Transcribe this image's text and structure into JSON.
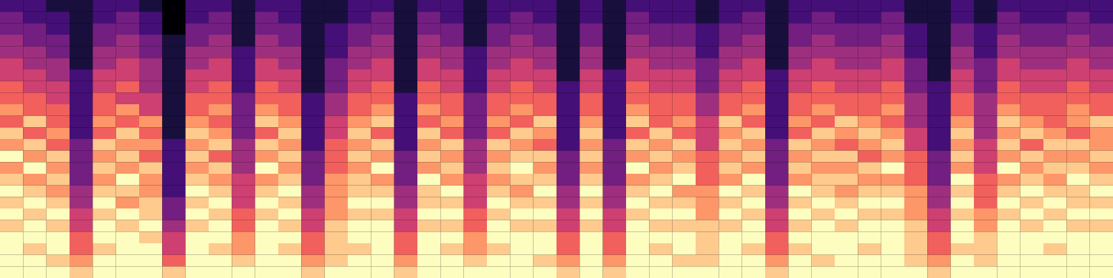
{
  "chart_data": {
    "type": "heatmap",
    "tick_labels": false,
    "color": "magma",
    "zlim": [
      0,
      9
    ],
    "cells": [
      [
        2,
        2,
        1,
        1,
        2,
        2,
        1,
        0,
        2,
        2,
        1,
        2,
        2,
        1,
        1,
        2,
        2,
        1,
        2,
        2,
        1,
        2,
        2,
        2,
        1,
        2,
        1,
        2,
        2,
        2,
        1,
        2,
        2,
        1,
        2,
        2,
        2,
        2,
        2,
        1,
        1,
        2,
        1,
        2,
        2,
        2,
        2,
        2
      ],
      [
        3,
        2,
        2,
        1,
        2,
        3,
        2,
        0,
        2,
        3,
        1,
        3,
        2,
        1,
        1,
        2,
        3,
        1,
        3,
        2,
        1,
        2,
        3,
        2,
        1,
        2,
        1,
        3,
        2,
        2,
        1,
        2,
        3,
        1,
        2,
        3,
        2,
        2,
        3,
        1,
        1,
        2,
        1,
        3,
        2,
        2,
        3,
        2
      ],
      [
        3,
        3,
        2,
        1,
        3,
        3,
        2,
        0,
        3,
        3,
        1,
        3,
        3,
        1,
        2,
        3,
        3,
        1,
        3,
        3,
        1,
        3,
        3,
        3,
        1,
        3,
        1,
        3,
        3,
        3,
        2,
        3,
        3,
        1,
        3,
        3,
        3,
        3,
        3,
        2,
        1,
        3,
        2,
        3,
        3,
        3,
        3,
        3
      ],
      [
        4,
        3,
        3,
        1,
        3,
        4,
        3,
        1,
        3,
        4,
        1,
        4,
        3,
        1,
        2,
        3,
        4,
        1,
        4,
        3,
        1,
        3,
        4,
        3,
        1,
        3,
        1,
        4,
        3,
        3,
        2,
        3,
        4,
        1,
        3,
        4,
        3,
        3,
        4,
        2,
        1,
        3,
        2,
        4,
        3,
        3,
        4,
        3
      ],
      [
        4,
        4,
        3,
        1,
        4,
        4,
        3,
        1,
        4,
        4,
        2,
        4,
        4,
        1,
        2,
        4,
        4,
        1,
        4,
        4,
        2,
        4,
        4,
        4,
        1,
        4,
        1,
        4,
        4,
        4,
        2,
        4,
        4,
        1,
        4,
        4,
        4,
        4,
        4,
        2,
        1,
        4,
        2,
        4,
        4,
        4,
        4,
        4
      ],
      [
        5,
        4,
        4,
        1,
        4,
        5,
        4,
        1,
        4,
        5,
        2,
        5,
        4,
        1,
        3,
        4,
        5,
        1,
        5,
        4,
        2,
        4,
        5,
        4,
        1,
        4,
        1,
        5,
        4,
        4,
        3,
        4,
        5,
        1,
        4,
        5,
        4,
        4,
        5,
        3,
        1,
        4,
        3,
        5,
        4,
        4,
        5,
        4
      ],
      [
        5,
        5,
        4,
        2,
        5,
        5,
        4,
        1,
        5,
        5,
        2,
        5,
        5,
        1,
        3,
        5,
        5,
        1,
        5,
        5,
        2,
        5,
        5,
        5,
        1,
        5,
        2,
        5,
        5,
        5,
        3,
        5,
        5,
        2,
        5,
        5,
        5,
        5,
        5,
        3,
        1,
        5,
        3,
        5,
        5,
        5,
        5,
        5
      ],
      [
        6,
        5,
        5,
        2,
        5,
        6,
        4,
        1,
        5,
        6,
        2,
        6,
        5,
        1,
        3,
        5,
        6,
        1,
        6,
        5,
        2,
        5,
        6,
        5,
        2,
        5,
        2,
        6,
        5,
        5,
        3,
        5,
        6,
        2,
        5,
        6,
        5,
        5,
        6,
        3,
        2,
        5,
        3,
        6,
        5,
        5,
        6,
        5
      ],
      [
        6,
        6,
        5,
        2,
        6,
        5,
        5,
        1,
        6,
        6,
        3,
        6,
        6,
        2,
        4,
        6,
        6,
        2,
        6,
        6,
        3,
        6,
        6,
        6,
        2,
        6,
        2,
        6,
        6,
        6,
        4,
        6,
        6,
        2,
        6,
        6,
        6,
        6,
        6,
        4,
        2,
        6,
        4,
        6,
        6,
        6,
        6,
        6
      ],
      [
        7,
        6,
        6,
        2,
        6,
        7,
        5,
        1,
        6,
        7,
        3,
        7,
        6,
        2,
        4,
        6,
        7,
        2,
        7,
        6,
        3,
        6,
        7,
        6,
        2,
        6,
        2,
        7,
        6,
        6,
        4,
        6,
        7,
        2,
        6,
        7,
        6,
        6,
        7,
        4,
        2,
        6,
        4,
        7,
        6,
        6,
        7,
        6
      ],
      [
        6,
        8,
        6,
        2,
        7,
        6,
        7,
        1,
        7,
        6,
        3,
        8,
        7,
        2,
        5,
        7,
        8,
        2,
        6,
        7,
        3,
        7,
        6,
        8,
        2,
        7,
        2,
        8,
        6,
        7,
        5,
        8,
        6,
        2,
        7,
        6,
        8,
        7,
        6,
        4,
        2,
        7,
        4,
        8,
        7,
        6,
        7,
        8
      ],
      [
        8,
        6,
        7,
        2,
        6,
        8,
        6,
        1,
        8,
        7,
        3,
        6,
        8,
        2,
        5,
        8,
        6,
        2,
        8,
        6,
        3,
        6,
        8,
        7,
        2,
        8,
        2,
        6,
        8,
        6,
        5,
        7,
        8,
        2,
        6,
        8,
        7,
        8,
        7,
        5,
        2,
        8,
        4,
        7,
        8,
        7,
        6,
        7
      ],
      [
        7,
        8,
        6,
        3,
        8,
        7,
        7,
        2,
        7,
        8,
        4,
        8,
        7,
        2,
        6,
        7,
        8,
        2,
        7,
        8,
        4,
        8,
        7,
        6,
        2,
        7,
        3,
        8,
        7,
        8,
        5,
        8,
        7,
        3,
        8,
        7,
        6,
        7,
        8,
        5,
        2,
        7,
        5,
        8,
        6,
        8,
        8,
        7
      ],
      [
        9,
        7,
        8,
        3,
        7,
        8,
        6,
        2,
        8,
        6,
        4,
        7,
        8,
        3,
        6,
        8,
        7,
        3,
        8,
        7,
        4,
        7,
        8,
        8,
        3,
        8,
        3,
        7,
        8,
        7,
        6,
        7,
        8,
        3,
        7,
        8,
        8,
        6,
        7,
        6,
        3,
        8,
        5,
        7,
        8,
        7,
        7,
        8
      ],
      [
        7,
        9,
        7,
        3,
        8,
        7,
        8,
        2,
        7,
        8,
        4,
        9,
        7,
        3,
        6,
        7,
        9,
        3,
        7,
        8,
        4,
        8,
        9,
        7,
        3,
        7,
        3,
        9,
        7,
        8,
        6,
        8,
        7,
        3,
        8,
        7,
        7,
        8,
        9,
        6,
        3,
        7,
        5,
        9,
        7,
        8,
        8,
        7
      ],
      [
        8,
        7,
        8,
        3,
        7,
        9,
        7,
        2,
        8,
        7,
        5,
        7,
        8,
        3,
        7,
        8,
        7,
        3,
        9,
        7,
        5,
        7,
        8,
        8,
        3,
        8,
        3,
        7,
        8,
        9,
        6,
        7,
        9,
        3,
        7,
        8,
        8,
        7,
        7,
        6,
        3,
        9,
        6,
        7,
        8,
        7,
        9,
        8
      ],
      [
        9,
        8,
        7,
        4,
        8,
        8,
        7,
        2,
        9,
        8,
        5,
        8,
        9,
        4,
        7,
        8,
        8,
        4,
        8,
        9,
        5,
        8,
        7,
        9,
        4,
        9,
        4,
        8,
        9,
        7,
        7,
        9,
        8,
        4,
        9,
        8,
        7,
        8,
        8,
        7,
        4,
        8,
        6,
        8,
        9,
        8,
        8,
        9
      ],
      [
        8,
        9,
        8,
        4,
        9,
        7,
        8,
        3,
        8,
        9,
        5,
        9,
        8,
        4,
        7,
        9,
        9,
        4,
        8,
        8,
        5,
        9,
        8,
        8,
        4,
        8,
        4,
        9,
        8,
        8,
        7,
        8,
        9,
        4,
        8,
        9,
        8,
        9,
        9,
        7,
        4,
        9,
        6,
        9,
        8,
        9,
        8,
        8
      ],
      [
        9,
        8,
        9,
        5,
        8,
        9,
        8,
        3,
        9,
        8,
        6,
        8,
        9,
        5,
        7,
        8,
        8,
        5,
        9,
        9,
        6,
        8,
        9,
        9,
        5,
        9,
        5,
        8,
        9,
        9,
        7,
        9,
        8,
        5,
        9,
        8,
        9,
        8,
        8,
        7,
        5,
        8,
        7,
        8,
        9,
        8,
        9,
        9
      ],
      [
        8,
        9,
        8,
        5,
        9,
        8,
        9,
        4,
        8,
        9,
        6,
        9,
        8,
        5,
        8,
        9,
        9,
        5,
        8,
        8,
        6,
        9,
        8,
        8,
        5,
        8,
        5,
        9,
        8,
        8,
        8,
        8,
        9,
        5,
        8,
        9,
        8,
        9,
        9,
        8,
        5,
        9,
        7,
        9,
        8,
        9,
        8,
        8
      ],
      [
        9,
        9,
        9,
        6,
        9,
        9,
        8,
        5,
        9,
        9,
        7,
        9,
        9,
        6,
        8,
        9,
        9,
        6,
        9,
        9,
        7,
        9,
        9,
        9,
        6,
        9,
        6,
        9,
        9,
        9,
        8,
        9,
        9,
        6,
        9,
        9,
        9,
        9,
        9,
        8,
        6,
        9,
        8,
        9,
        9,
        9,
        9,
        9
      ],
      [
        9,
        8,
        9,
        6,
        8,
        9,
        9,
        5,
        9,
        8,
        7,
        9,
        8,
        6,
        8,
        8,
        9,
        6,
        9,
        8,
        7,
        8,
        9,
        9,
        6,
        9,
        6,
        9,
        8,
        9,
        8,
        9,
        8,
        6,
        8,
        9,
        9,
        8,
        9,
        8,
        6,
        8,
        8,
        9,
        9,
        8,
        9,
        9
      ],
      [
        9,
        9,
        8,
        7,
        9,
        9,
        9,
        6,
        9,
        9,
        8,
        9,
        9,
        7,
        8,
        9,
        9,
        7,
        9,
        9,
        8,
        9,
        9,
        8,
        7,
        9,
        7,
        9,
        9,
        8,
        8,
        9,
        9,
        7,
        9,
        8,
        9,
        9,
        9,
        8,
        7,
        9,
        8,
        9,
        9,
        9,
        9,
        9
      ],
      [
        9,
        9,
        9,
        8,
        9,
        9,
        9,
        8,
        9,
        9,
        9,
        9,
        9,
        8,
        9,
        9,
        9,
        8,
        9,
        9,
        9,
        9,
        9,
        9,
        8,
        9,
        8,
        9,
        9,
        9,
        9,
        9,
        9,
        8,
        9,
        9,
        9,
        9,
        9,
        9,
        8,
        9,
        9,
        9,
        9,
        9,
        9,
        9
      ]
    ]
  }
}
